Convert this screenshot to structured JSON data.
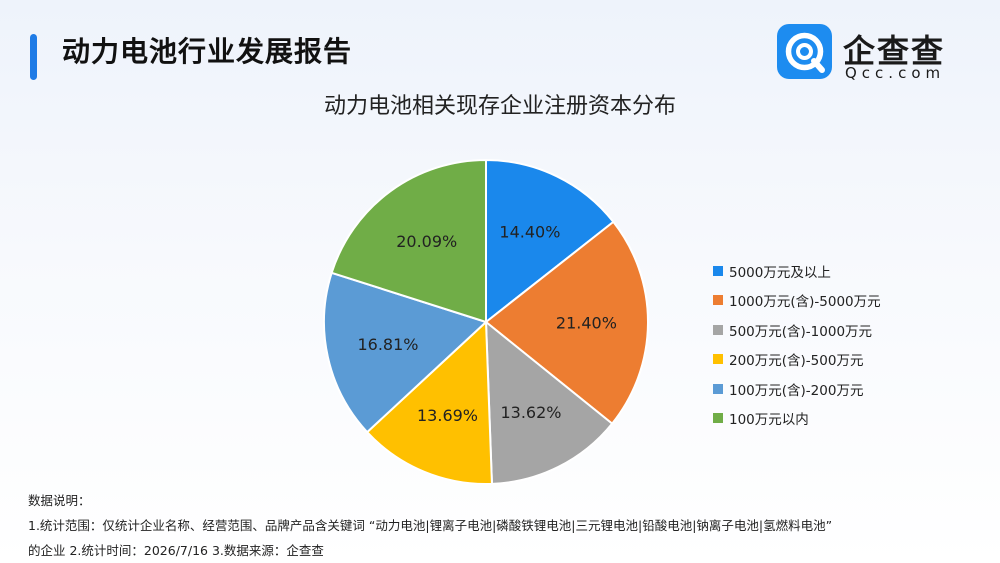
{
  "header": {
    "title": "动力电池行业发展报告"
  },
  "logo": {
    "text": "企查查",
    "subtext": "Qcc.com",
    "color": "#1d8cf0"
  },
  "chart_data": {
    "type": "pie",
    "title": "动力电池相关现存企业注册资本分布",
    "legend_position": "right",
    "labels": [
      "5000万元及以上",
      "1000万元(含)-5000万元",
      "500万元(含)-1000万元",
      "200万元(含)-500万元",
      "100万元(含)-200万元",
      "100万元以内"
    ],
    "values": [
      14.4,
      21.4,
      13.62,
      13.69,
      16.81,
      20.09
    ],
    "value_labels": [
      "14.40%",
      "21.40%",
      "13.62%",
      "13.69%",
      "16.81%",
      "20.09%"
    ],
    "colors": [
      "#1a88ec",
      "#ed7d31",
      "#a5a5a5",
      "#ffc000",
      "#5b9bd5",
      "#70ad47"
    ],
    "start": "12 o'clock, clockwise"
  },
  "notes": {
    "heading": "数据说明：",
    "line1": "1.统计范围：仅统计企业名称、经营范围、品牌产品含关键词 “动力电池|锂离子电池|磷酸铁锂电池|三元锂电池|铅酸电池|钠离子电池|氢燃料电池”",
    "line2": "的企业   2.统计时间：2026/7/16  3.数据来源：企查查"
  }
}
